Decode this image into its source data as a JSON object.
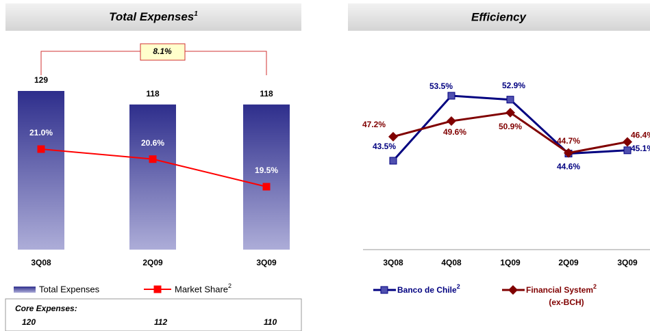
{
  "chart_data": [
    {
      "type": "bar",
      "title": "Total Expenses",
      "title_note": "1",
      "categories": [
        "3Q08",
        "2Q09",
        "3Q09"
      ],
      "series": [
        {
          "name": "Total Expenses",
          "color": "#33338f",
          "values": [
            129,
            118,
            118
          ]
        },
        {
          "name": "Market Share",
          "name_note": "2",
          "color": "#ff0000",
          "type": "line",
          "values": [
            21.0,
            20.6,
            19.5
          ],
          "value_labels": [
            "21.0%",
            "20.6%",
            "19.5%"
          ]
        }
      ],
      "annotation": "8.1%",
      "core": {
        "label": "Core Expenses:",
        "values": [
          120,
          112,
          110
        ]
      }
    },
    {
      "type": "line",
      "title": "Efficiency",
      "categories": [
        "3Q08",
        "4Q08",
        "1Q09",
        "2Q09",
        "3Q09"
      ],
      "series": [
        {
          "name": "Banco de Chile",
          "name_note": "2",
          "color": "#000080",
          "marker": "square",
          "values": [
            43.5,
            53.5,
            52.9,
            44.6,
            45.1
          ],
          "value_labels": [
            "43.5%",
            "53.5%",
            "52.9%",
            "44.6%",
            "45.1%"
          ]
        },
        {
          "name": "Financial System",
          "name_note": "2",
          "name_sub": "(ex-BCH)",
          "color": "#800000",
          "marker": "diamond",
          "values": [
            47.2,
            49.6,
            50.9,
            44.7,
            46.4
          ],
          "value_labels": [
            "47.2%",
            "49.6%",
            "50.9%",
            "44.7%",
            "46.4%"
          ]
        }
      ]
    }
  ]
}
